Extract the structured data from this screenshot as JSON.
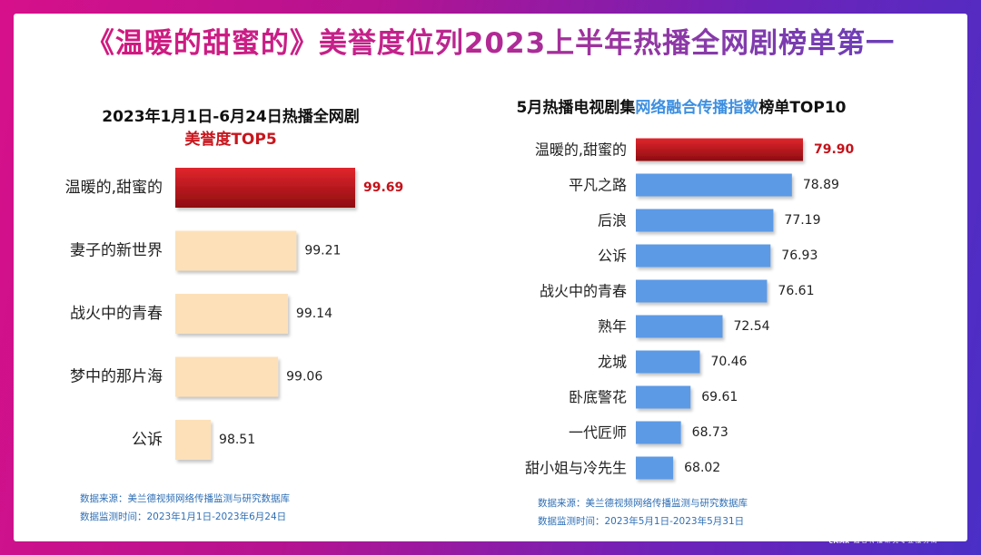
{
  "title": "《温暖的甜蜜的》美誉度位列2023上半年热播全网剧榜单第一",
  "left_panel": {
    "title_line1": "2023年1月1日-6月24日热播全网剧",
    "title_line2": "美誉度TOP5",
    "source_line1": "数据来源：美兰德视频网络传播监测与研究数据库",
    "source_line2": "数据监测时间：2023年1月1日-2023年6月24日"
  },
  "right_panel": {
    "title_prefix": "5月热播电视剧集",
    "title_highlight": "网络融合传播指数",
    "title_suffix": "榜单TOP10",
    "source_line1": "数据来源：美兰德视频网络传播监测与研究数据库",
    "source_line2": "数据监测时间：2023年5月1日-2023年5月31日"
  },
  "logo": {
    "mark": "M",
    "mark_small": "CMMR",
    "name": "美兰德传播咨询",
    "tagline": "融合传播研究专业服务商"
  },
  "colors": {
    "highlight_bar": "#c4121a",
    "left_bar": "#fde0b8",
    "right_bar": "#5b9ae6",
    "highlight_label": "#c4121a"
  },
  "chart_data": [
    {
      "type": "bar",
      "orientation": "horizontal",
      "title": "2023年1月1日-6月24日热播全网剧 美誉度TOP5",
      "categories": [
        "温暖的,甜蜜的",
        "妻子的新世界",
        "战火中的青春",
        "梦中的那片海",
        "公诉"
      ],
      "values": [
        99.69,
        99.21,
        99.14,
        99.06,
        98.51
      ],
      "value_labels": [
        "99.69",
        "99.21",
        "99.14",
        "99.06",
        "98.51"
      ],
      "xlim": [
        98.22,
        99.69
      ],
      "grid": false,
      "highlight_index": 0
    },
    {
      "type": "bar",
      "orientation": "horizontal",
      "title": "5月热播电视剧集网络融合传播指数榜单TOP10",
      "categories": [
        "温暖的,甜蜜的",
        "平凡之路",
        "后浪",
        "公诉",
        "战火中的青春",
        "熟年",
        "龙城",
        "卧底警花",
        "一代匠师",
        "甜小姐与冷先生"
      ],
      "values": [
        79.9,
        78.89,
        77.19,
        76.93,
        76.61,
        72.54,
        70.46,
        69.61,
        68.73,
        68.02
      ],
      "value_labels": [
        "79.90",
        "78.89",
        "77.19",
        "76.93",
        "76.61",
        "72.54",
        "70.46",
        "69.61",
        "68.73",
        "68.02"
      ],
      "xlim": [
        64.6,
        79.9
      ],
      "grid": false,
      "highlight_index": 0
    }
  ]
}
